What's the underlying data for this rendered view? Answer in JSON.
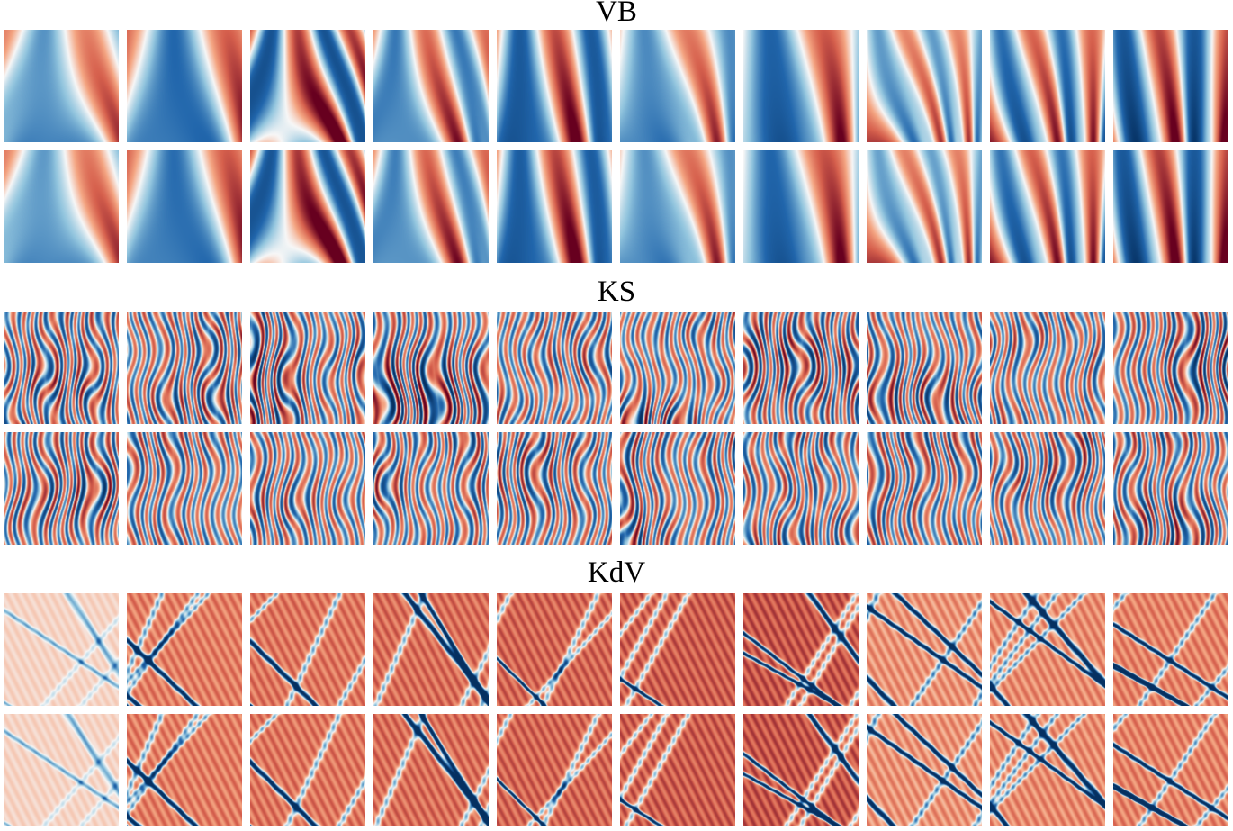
{
  "figure": {
    "panels": [
      {
        "label": "VB"
      },
      {
        "label": "KS"
      },
      {
        "label": "KdV"
      }
    ],
    "columns": 10,
    "rows_per_panel": 2,
    "colormap": {
      "negative": "#053061",
      "neutral": "#f7f7f7",
      "positive": "#67001f"
    }
  }
}
